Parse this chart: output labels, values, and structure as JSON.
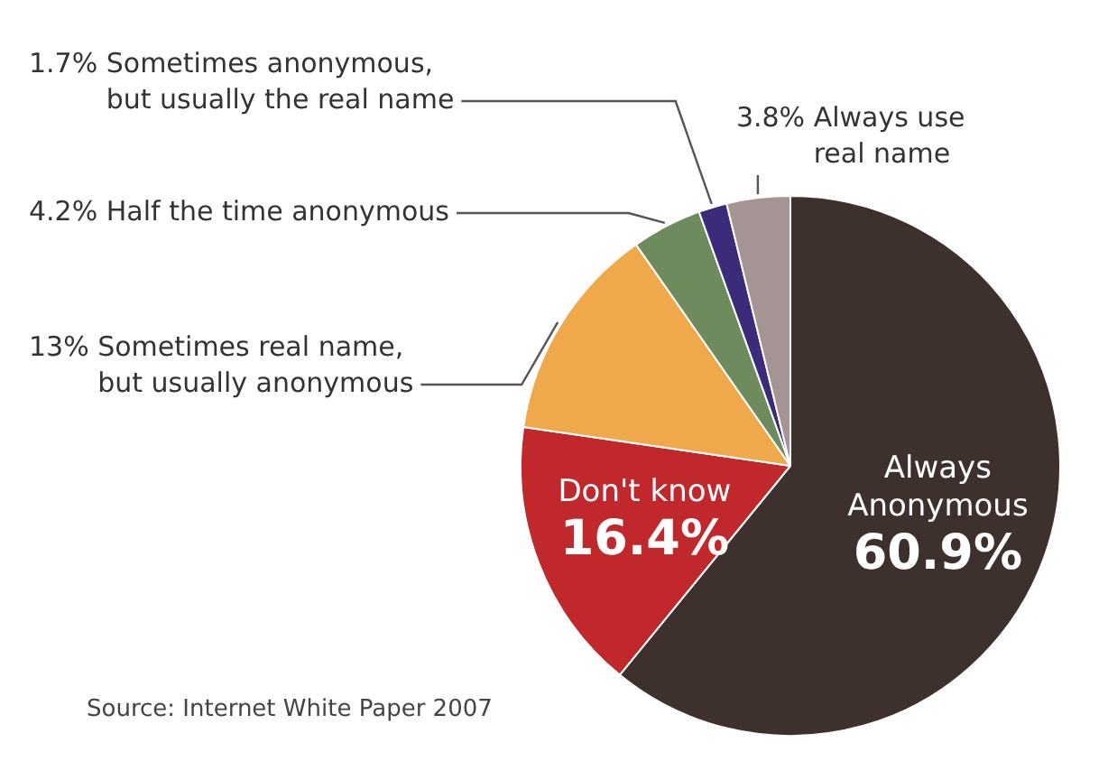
{
  "chart_data": {
    "type": "pie",
    "categories": [
      "Always Anonymous",
      "Don't know",
      "Sometimes real name, but usually anonymous",
      "Half the time anonymous",
      "Sometimes anonymous, but usually the real name",
      "Always use real name"
    ],
    "values": [
      60.9,
      16.4,
      13,
      4.2,
      1.7,
      3.8
    ],
    "value_labels": [
      "60.9%",
      "16.4%",
      "13%",
      "4.2%",
      "1.7%",
      "3.8%"
    ],
    "colors": [
      "#3d302d",
      "#c0282b",
      "#f0a94a",
      "#6d8b5c",
      "#3b2b7a",
      "#a49494"
    ],
    "legend": false,
    "annotations": [
      "Source: Internet White Paper 2007"
    ]
  }
}
